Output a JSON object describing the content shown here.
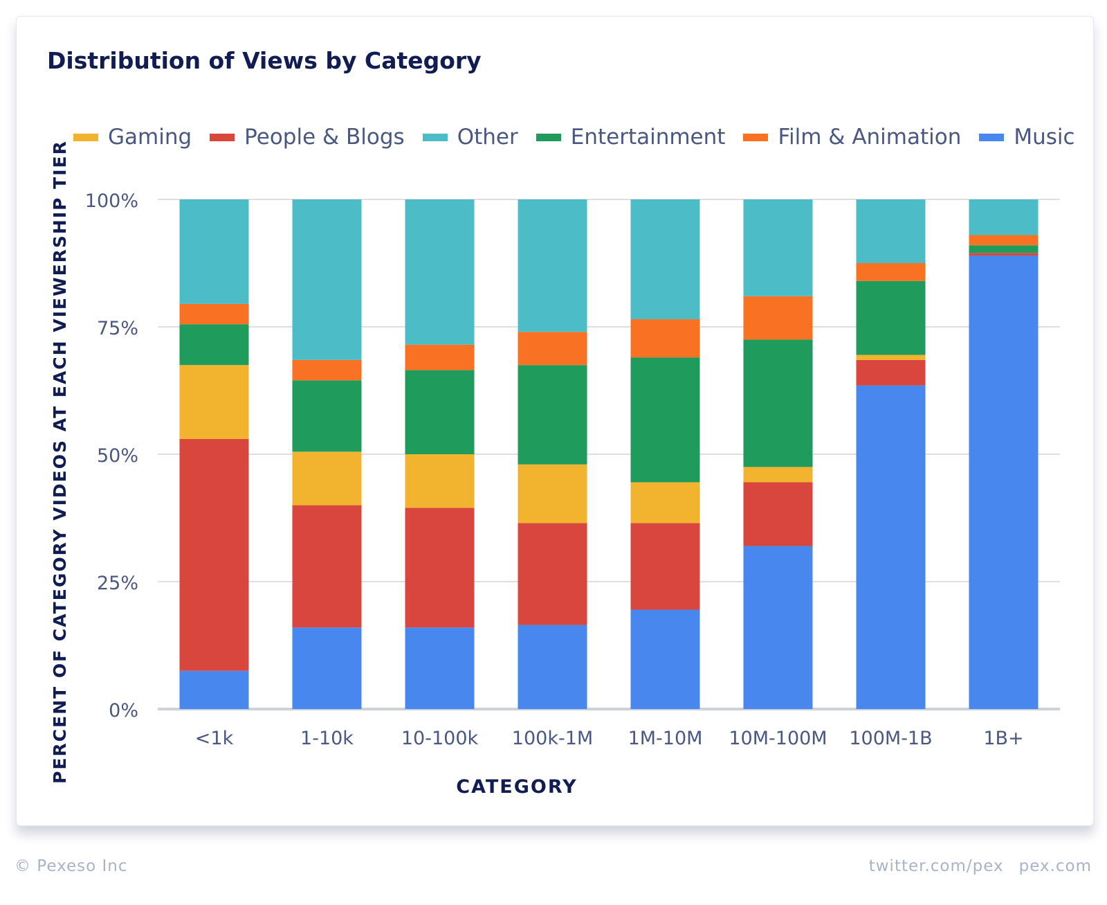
{
  "title": "Distribution of Views by Category",
  "footer": {
    "copyright": "© Pexeso Inc",
    "twitter": "twitter.com/pex",
    "site": "pex.com"
  },
  "chart_data": {
    "type": "bar",
    "stacked": true,
    "title": "Distribution of Views by Category",
    "xlabel": "CATEGORY",
    "ylabel": "PERCENT OF CATEGORY VIDEOS AT EACH VIEWERSHIP TIER",
    "ylim": [
      0,
      100
    ],
    "yticks": [
      "0%",
      "25%",
      "50%",
      "75%",
      "100%"
    ],
    "grid": true,
    "legend_position": "top",
    "categories": [
      "<1k",
      "1-10k",
      "10-100k",
      "100k-1M",
      "1M-10M",
      "10M-100M",
      "100M-1B",
      "1B+"
    ],
    "legend": [
      {
        "name": "Gaming",
        "color": "#f2b32e"
      },
      {
        "name": "People & Blogs",
        "color": "#d9463e"
      },
      {
        "name": "Other",
        "color": "#4cbdc7"
      },
      {
        "name": "Entertainment",
        "color": "#1f9b5c"
      },
      {
        "name": "Film & Animation",
        "color": "#f97122"
      },
      {
        "name": "Music",
        "color": "#4887ee"
      }
    ],
    "series": [
      {
        "name": "Music",
        "color": "#4887ee",
        "values": [
          7.5,
          16,
          16,
          16.5,
          19.5,
          32,
          63.5,
          89
        ]
      },
      {
        "name": "People & Blogs",
        "color": "#d9463e",
        "values": [
          45.5,
          24,
          23.5,
          20,
          17,
          12.5,
          5,
          0.5
        ]
      },
      {
        "name": "Gaming",
        "color": "#f2b32e",
        "values": [
          14.5,
          10.5,
          10.5,
          11.5,
          8,
          3,
          1,
          0
        ]
      },
      {
        "name": "Entertainment",
        "color": "#1f9b5c",
        "values": [
          8,
          14,
          16.5,
          19.5,
          24.5,
          25,
          14.5,
          1.5
        ]
      },
      {
        "name": "Film & Animation",
        "color": "#f97122",
        "values": [
          4,
          4,
          5,
          6.5,
          7.5,
          8.5,
          3.5,
          2
        ]
      },
      {
        "name": "Other",
        "color": "#4cbdc7",
        "values": [
          20.5,
          31.5,
          28.5,
          26,
          23.5,
          19,
          12.5,
          7
        ]
      }
    ]
  }
}
